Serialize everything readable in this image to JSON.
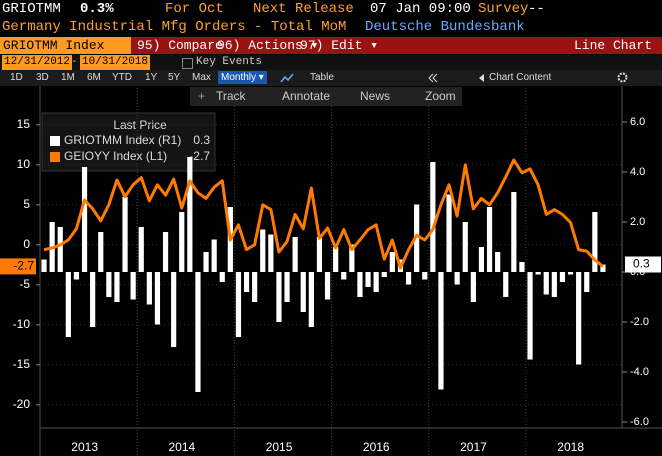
{
  "header": {
    "ticker": "GRIOTMM",
    "value": "0.3%",
    "period": "For Oct",
    "next_release_label": "Next Release",
    "next_release": "07 Jan 09:00",
    "survey_label": "Survey",
    "survey": "--",
    "description": "Germany Industrial Mfg Orders - Total MoM",
    "source": "Deutsche Bundesbank"
  },
  "menu": {
    "security": "GRIOTMM Index",
    "items": [
      "95) Compare",
      "96) Actions ▾",
      "97) Edit ▾"
    ],
    "view": "Line Chart"
  },
  "range": {
    "start": "12/31/2012",
    "separator": "-",
    "end": "10/31/2018",
    "key_events": "Key Events"
  },
  "periods": [
    "1D",
    "3D",
    "1M",
    "6M",
    "YTD",
    "1Y",
    "5Y",
    "Max"
  ],
  "frequency": "Monthly ▾",
  "table": "Table",
  "chart_content": "Chart Content",
  "tools": [
    "Track",
    "Annotate",
    "News",
    "Zoom"
  ],
  "chart_data": {
    "type": "combo",
    "legend_title": "Last Price",
    "categories": [
      null,
      null,
      null,
      null,
      null,
      null,
      "2013",
      null,
      null,
      null,
      null,
      null,
      null,
      null,
      null,
      null,
      null,
      null,
      "2014",
      null,
      null,
      null,
      null,
      null,
      null,
      null,
      null,
      null,
      null,
      null,
      "2015",
      null,
      null,
      null,
      null,
      null,
      null,
      null,
      null,
      null,
      null,
      null,
      "2016",
      null,
      null,
      null,
      null,
      null,
      null,
      null,
      null,
      null,
      null,
      null,
      "2017",
      null,
      null,
      null,
      null,
      null,
      null,
      null,
      null,
      null,
      null,
      null,
      "2018",
      null,
      null,
      null
    ],
    "series": [
      {
        "name": "GRIOTMM Index (R1)",
        "type": "bar",
        "axis": "y2",
        "color": "#ffffff",
        "values": [
          0.5,
          2.0,
          1.8,
          -2.6,
          -0.3,
          4.2,
          -2.2,
          1.6,
          -1.0,
          -1.2,
          3.0,
          -1.1,
          1.8,
          -1.3,
          -2.1,
          1.6,
          -3.0,
          2.4,
          4.6,
          -4.8,
          0.8,
          1.3,
          -0.4,
          2.6,
          -2.6,
          -0.8,
          -1.2,
          1.7,
          1.5,
          -2.0,
          -1.2,
          1.4,
          -1.6,
          -2.2,
          1.4,
          -1.1,
          1.0,
          -0.3,
          1.1,
          -1.0,
          -0.6,
          -0.8,
          -0.2,
          0.8,
          0.5,
          -0.5,
          2.7,
          -0.3,
          4.4,
          -4.7,
          3.1,
          -0.5,
          2.0,
          -1.2,
          1.0,
          2.6,
          0.8,
          -1.0,
          3.2,
          0.4,
          -3.5,
          -0.1,
          -0.9,
          -1.0,
          -0.4,
          -0.1,
          -3.7,
          -0.8,
          2.4,
          0.3
        ]
      },
      {
        "name": "GEIOYY Index (L1)",
        "type": "line",
        "color": "#ff7a00",
        "values": [
          -0.6,
          -0.4,
          0.0,
          0.6,
          2.0,
          5.6,
          4.5,
          3.0,
          5.0,
          8.1,
          6.0,
          7.5,
          8.4,
          5.5,
          7.5,
          6.2,
          8.2,
          4.6,
          8.0,
          6.5,
          5.8,
          7.2,
          8.0,
          0.6,
          2.5,
          -0.6,
          0.0,
          5.0,
          4.4,
          -0.9,
          0.4,
          3.8,
          2.0,
          7.1,
          0.8,
          2.1,
          -0.4,
          1.9,
          -0.6,
          0.6,
          1.9,
          2.5,
          -1.8,
          0.6,
          -2.9,
          -0.6,
          1.2,
          0.6,
          1.9,
          5.0,
          7.5,
          3.6,
          10.0,
          4.5,
          5.8,
          5.0,
          6.5,
          8.5,
          10.6,
          9.0,
          9.5,
          7.5,
          3.8,
          4.4,
          3.8,
          2.8,
          -0.6,
          -0.8,
          -1.9,
          -2.7
        ]
      }
    ],
    "ylim": [
      -22.9,
      19.6
    ],
    "yticks": [
      15,
      10,
      5,
      0,
      -5,
      -10,
      -15,
      -20
    ],
    "y2lim": [
      -6.24,
      7.36
    ],
    "y2ticks": [
      {
        "value": 6,
        "label": "6.0"
      },
      {
        "value": 4,
        "label": "4.0"
      },
      {
        "value": 2,
        "label": "2.0"
      },
      {
        "value": 0,
        "label": "0.0"
      },
      {
        "value": -2,
        "label": "-2.0"
      },
      {
        "value": -4,
        "label": "-4.0"
      },
      {
        "value": -6,
        "label": "-6.0"
      }
    ],
    "grid": true
  }
}
